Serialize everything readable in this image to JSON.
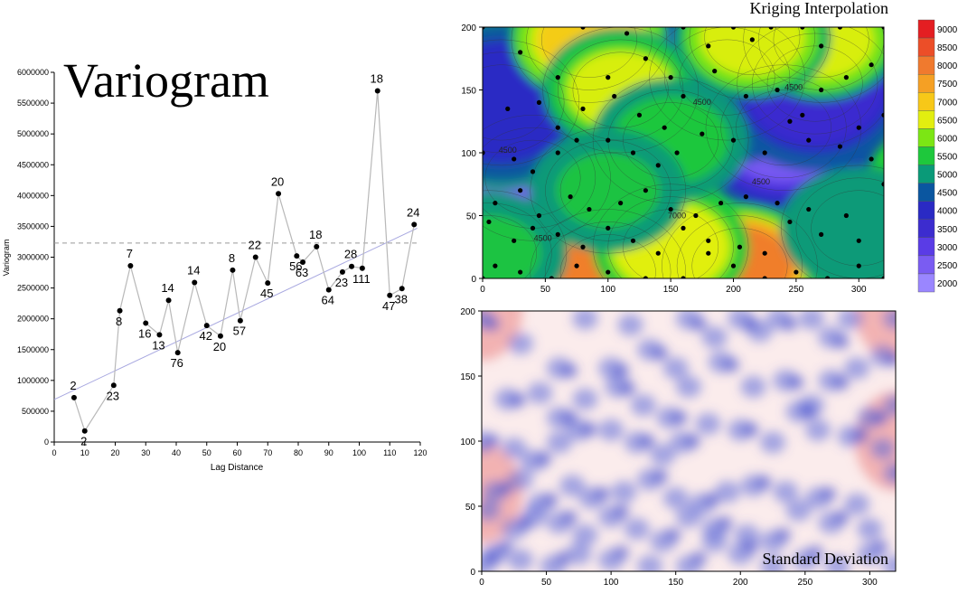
{
  "chart_data": [
    {
      "type": "scatter",
      "title": "Variogram",
      "xlabel": "Lag Distance",
      "ylabel": "Variogram",
      "xlim": [
        0,
        120
      ],
      "ylim": [
        0,
        6000000
      ],
      "xticks": [
        "0",
        "10",
        "20",
        "30",
        "40",
        "50",
        "60",
        "70",
        "80",
        "90",
        "100",
        "110",
        "120"
      ],
      "yticks": [
        "0",
        "500000",
        "1000000",
        "1500000",
        "2000000",
        "2500000",
        "3000000",
        "3500000",
        "4000000",
        "4500000",
        "5000000",
        "5500000",
        "6000000"
      ],
      "sill": 3230000,
      "model_line": {
        "x": [
          0,
          119
        ],
        "y": [
          690000,
          3470000
        ]
      },
      "points": [
        {
          "x": 6.5,
          "y": 720000,
          "label": "2"
        },
        {
          "x": 10,
          "y": 180000,
          "label": "2"
        },
        {
          "x": 19.5,
          "y": 920000,
          "label": "23"
        },
        {
          "x": 21.5,
          "y": 2130000,
          "label": "8"
        },
        {
          "x": 25,
          "y": 2860000,
          "label": "7"
        },
        {
          "x": 30,
          "y": 1930000,
          "label": "16"
        },
        {
          "x": 34.5,
          "y": 1740000,
          "label": "13"
        },
        {
          "x": 37.5,
          "y": 2300000,
          "label": "14"
        },
        {
          "x": 40.5,
          "y": 1450000,
          "label": "76"
        },
        {
          "x": 46,
          "y": 2590000,
          "label": "14"
        },
        {
          "x": 50,
          "y": 1890000,
          "label": "42"
        },
        {
          "x": 54.5,
          "y": 1720000,
          "label": "20"
        },
        {
          "x": 58.5,
          "y": 2790000,
          "label": "8"
        },
        {
          "x": 61,
          "y": 1970000,
          "label": "57"
        },
        {
          "x": 66,
          "y": 3000000,
          "label": "22"
        },
        {
          "x": 70,
          "y": 2580000,
          "label": "45"
        },
        {
          "x": 73.5,
          "y": 4030000,
          "label": "20"
        },
        {
          "x": 79.5,
          "y": 3020000,
          "label": "56"
        },
        {
          "x": 81.5,
          "y": 2920000,
          "label": "63"
        },
        {
          "x": 86,
          "y": 3170000,
          "label": "18"
        },
        {
          "x": 90,
          "y": 2470000,
          "label": "64"
        },
        {
          "x": 94.5,
          "y": 2760000,
          "label": "23"
        },
        {
          "x": 97.5,
          "y": 2850000,
          "label": "28"
        },
        {
          "x": 101,
          "y": 2820000,
          "label": "111"
        },
        {
          "x": 106,
          "y": 5700000,
          "label": "18"
        },
        {
          "x": 110,
          "y": 2380000,
          "label": "47"
        },
        {
          "x": 114,
          "y": 2490000,
          "label": "38"
        },
        {
          "x": 118,
          "y": 3530000,
          "label": "24"
        }
      ]
    },
    {
      "type": "heatmap",
      "title": "Kriging Interpolation",
      "xlim": [
        0,
        320
      ],
      "ylim": [
        0,
        200
      ],
      "xticks": [
        "0",
        "50",
        "100",
        "150",
        "200",
        "250",
        "300"
      ],
      "yticks": [
        "0",
        "50",
        "100",
        "150",
        "200"
      ],
      "contour_labels": [
        "4500",
        "4500",
        "4500",
        "4500",
        "4500",
        "7000"
      ],
      "legend_ticks": [
        "2000",
        "2500",
        "3000",
        "3500",
        "4000",
        "4500",
        "5000",
        "5500",
        "6000",
        "6500",
        "7000",
        "7500",
        "8000",
        "8500",
        "9000"
      ],
      "legend_colors": [
        "#9a86ff",
        "#7a5cf2",
        "#5a3ce6",
        "#3c2ccf",
        "#2a2ac4",
        "#0a56a0",
        "#0a9a78",
        "#1ec83c",
        "#7ce614",
        "#e2ee10",
        "#f7c818",
        "#f5a024",
        "#f07a2e",
        "#ec4e28",
        "#e41e22"
      ],
      "centers": [
        {
          "x": 40,
          "y": 80,
          "v": 2300
        },
        {
          "x": 15,
          "y": 140,
          "v": 4000
        },
        {
          "x": 240,
          "y": 120,
          "v": 2100
        },
        {
          "x": 195,
          "y": 160,
          "v": 3200
        },
        {
          "x": 265,
          "y": 155,
          "v": 3200
        },
        {
          "x": 100,
          "y": 5,
          "v": 8800
        },
        {
          "x": 205,
          "y": 10,
          "v": 9000
        },
        {
          "x": 150,
          "y": 25,
          "v": 7200
        },
        {
          "x": 85,
          "y": 190,
          "v": 7800
        },
        {
          "x": 110,
          "y": 150,
          "v": 6800
        },
        {
          "x": 270,
          "y": 190,
          "v": 7000
        },
        {
          "x": 215,
          "y": 192,
          "v": 6900
        },
        {
          "x": 150,
          "y": 110,
          "v": 5700
        },
        {
          "x": 100,
          "y": 70,
          "v": 5600
        },
        {
          "x": 300,
          "y": 40,
          "v": 5300
        },
        {
          "x": 5,
          "y": 20,
          "v": 5600
        }
      ],
      "samples": [
        [
          0,
          200
        ],
        [
          30,
          180
        ],
        [
          60,
          160
        ],
        [
          80,
          200
        ],
        [
          100,
          160
        ],
        [
          115,
          195
        ],
        [
          130,
          175
        ],
        [
          150,
          160
        ],
        [
          160,
          200
        ],
        [
          180,
          185
        ],
        [
          200,
          200
        ],
        [
          215,
          190
        ],
        [
          230,
          200
        ],
        [
          255,
          200
        ],
        [
          270,
          185
        ],
        [
          285,
          200
        ],
        [
          310,
          170
        ],
        [
          320,
          200
        ],
        [
          20,
          135
        ],
        [
          45,
          140
        ],
        [
          60,
          120
        ],
        [
          80,
          135
        ],
        [
          105,
          145
        ],
        [
          125,
          130
        ],
        [
          145,
          120
        ],
        [
          160,
          145
        ],
        [
          185,
          165
        ],
        [
          210,
          145
        ],
        [
          235,
          150
        ],
        [
          255,
          130
        ],
        [
          270,
          150
        ],
        [
          290,
          160
        ],
        [
          300,
          120
        ],
        [
          320,
          130
        ],
        [
          0,
          100
        ],
        [
          25,
          95
        ],
        [
          40,
          85
        ],
        [
          60,
          100
        ],
        [
          75,
          110
        ],
        [
          100,
          110
        ],
        [
          120,
          100
        ],
        [
          140,
          90
        ],
        [
          155,
          100
        ],
        [
          175,
          115
        ],
        [
          200,
          110
        ],
        [
          225,
          100
        ],
        [
          245,
          125
        ],
        [
          260,
          110
        ],
        [
          285,
          105
        ],
        [
          310,
          95
        ],
        [
          10,
          60
        ],
        [
          30,
          70
        ],
        [
          45,
          50
        ],
        [
          70,
          65
        ],
        [
          85,
          55
        ],
        [
          110,
          60
        ],
        [
          130,
          70
        ],
        [
          150,
          55
        ],
        [
          170,
          50
        ],
        [
          190,
          60
        ],
        [
          210,
          65
        ],
        [
          235,
          60
        ],
        [
          260,
          55
        ],
        [
          290,
          50
        ],
        [
          320,
          75
        ],
        [
          5,
          45
        ],
        [
          25,
          30
        ],
        [
          40,
          40
        ],
        [
          60,
          35
        ],
        [
          80,
          25
        ],
        [
          100,
          40
        ],
        [
          120,
          30
        ],
        [
          140,
          20
        ],
        [
          160,
          40
        ],
        [
          180,
          30
        ],
        [
          205,
          25
        ],
        [
          225,
          20
        ],
        [
          245,
          45
        ],
        [
          270,
          35
        ],
        [
          300,
          30
        ],
        [
          10,
          10
        ],
        [
          30,
          5
        ],
        [
          55,
          0
        ],
        [
          75,
          10
        ],
        [
          100,
          5
        ],
        [
          130,
          0
        ],
        [
          160,
          0
        ],
        [
          180,
          20
        ],
        [
          200,
          10
        ],
        [
          225,
          0
        ],
        [
          250,
          5
        ],
        [
          275,
          0
        ],
        [
          300,
          10
        ],
        [
          320,
          0
        ],
        [
          0,
          0
        ]
      ]
    },
    {
      "type": "heatmap",
      "title": "Standard Deviation",
      "xlim": [
        0,
        320
      ],
      "ylim": [
        0,
        200
      ],
      "xticks": [
        "0",
        "50",
        "100",
        "150",
        "200",
        "250",
        "300"
      ],
      "yticks": [
        "0",
        "50",
        "100",
        "150",
        "200"
      ]
    }
  ]
}
